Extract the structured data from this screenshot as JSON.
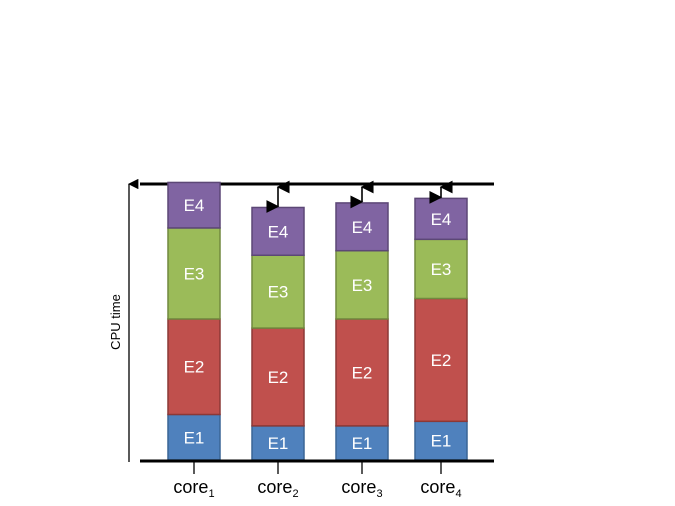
{
  "axis_label": "CPU time",
  "segment_colors": {
    "E1": {
      "fill": "#4f81bd",
      "stroke": "#3a6595"
    },
    "E2": {
      "fill": "#c0504d",
      "stroke": "#8c3836"
    },
    "E3": {
      "fill": "#9bbb59",
      "stroke": "#71893f"
    },
    "E4": {
      "fill": "#8064a2",
      "stroke": "#5c4776"
    }
  },
  "cores": [
    {
      "name": "core",
      "subscript": "1",
      "segments": [
        {
          "label": "E1",
          "value": 1.0
        },
        {
          "label": "E2",
          "value": 2.1
        },
        {
          "label": "E3",
          "value": 2.0
        },
        {
          "label": "E4",
          "value": 1.0
        }
      ],
      "slack": false
    },
    {
      "name": "core",
      "subscript": "2",
      "segments": [
        {
          "label": "E1",
          "value": 0.75
        },
        {
          "label": "E2",
          "value": 2.15
        },
        {
          "label": "E3",
          "value": 1.6
        },
        {
          "label": "E4",
          "value": 1.05
        }
      ],
      "slack": true
    },
    {
      "name": "core",
      "subscript": "3",
      "segments": [
        {
          "label": "E1",
          "value": 0.75
        },
        {
          "label": "E2",
          "value": 2.35
        },
        {
          "label": "E3",
          "value": 1.5
        },
        {
          "label": "E4",
          "value": 1.05
        }
      ],
      "slack": true
    },
    {
      "name": "core",
      "subscript": "4",
      "segments": [
        {
          "label": "E1",
          "value": 0.85
        },
        {
          "label": "E2",
          "value": 2.7
        },
        {
          "label": "E3",
          "value": 1.3
        },
        {
          "label": "E4",
          "value": 0.9
        }
      ],
      "slack": true
    }
  ]
}
